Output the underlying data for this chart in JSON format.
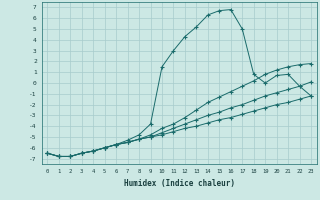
{
  "xlabel": "Humidex (Indice chaleur)",
  "bg_color": "#cce8e4",
  "grid_color": "#a8cccc",
  "line_color": "#1a6b6b",
  "xlim": [
    -0.5,
    23.5
  ],
  "ylim": [
    -7.5,
    7.5
  ],
  "xticks": [
    0,
    1,
    2,
    3,
    4,
    5,
    6,
    7,
    8,
    9,
    10,
    11,
    12,
    13,
    14,
    15,
    16,
    17,
    18,
    19,
    20,
    21,
    22,
    23
  ],
  "yticks": [
    -7,
    -6,
    -5,
    -4,
    -3,
    -2,
    -1,
    0,
    1,
    2,
    3,
    4,
    5,
    6,
    7
  ],
  "curve1_x": [
    0,
    1,
    2,
    3,
    4,
    5,
    6,
    7,
    8,
    9,
    10,
    11,
    12,
    13,
    14,
    15,
    16,
    17,
    18,
    19,
    20,
    21,
    22,
    23
  ],
  "curve1_y": [
    -6.5,
    -6.8,
    -6.8,
    -6.5,
    -6.3,
    -6.0,
    -5.7,
    -5.3,
    -4.8,
    -3.8,
    1.5,
    3.0,
    4.3,
    5.2,
    6.3,
    6.7,
    6.8,
    5.0,
    0.8,
    0.0,
    0.7,
    0.8,
    -0.3,
    -1.2
  ],
  "curve2_x": [
    0,
    1,
    2,
    3,
    4,
    5,
    6,
    7,
    8,
    9,
    10,
    11,
    12,
    13,
    14,
    15,
    16,
    17,
    18,
    19,
    20,
    21,
    22,
    23
  ],
  "curve2_y": [
    -6.5,
    -6.8,
    -6.8,
    -6.5,
    -6.3,
    -6.0,
    -5.7,
    -5.5,
    -5.2,
    -4.8,
    -4.2,
    -3.8,
    -3.2,
    -2.5,
    -1.8,
    -1.3,
    -0.8,
    -0.3,
    0.2,
    0.8,
    1.2,
    1.5,
    1.7,
    1.8
  ],
  "curve3_x": [
    0,
    1,
    2,
    3,
    4,
    5,
    6,
    7,
    8,
    9,
    10,
    11,
    12,
    13,
    14,
    15,
    16,
    17,
    18,
    19,
    20,
    21,
    22,
    23
  ],
  "curve3_y": [
    -6.5,
    -6.8,
    -6.8,
    -6.5,
    -6.3,
    -6.0,
    -5.7,
    -5.5,
    -5.2,
    -5.0,
    -4.6,
    -4.2,
    -3.8,
    -3.4,
    -3.0,
    -2.7,
    -2.3,
    -2.0,
    -1.6,
    -1.2,
    -0.9,
    -0.6,
    -0.3,
    0.1
  ],
  "curve4_x": [
    0,
    1,
    2,
    3,
    4,
    5,
    6,
    7,
    8,
    9,
    10,
    11,
    12,
    13,
    14,
    15,
    16,
    17,
    18,
    19,
    20,
    21,
    22,
    23
  ],
  "curve4_y": [
    -6.5,
    -6.8,
    -6.8,
    -6.5,
    -6.3,
    -6.0,
    -5.7,
    -5.5,
    -5.2,
    -5.0,
    -4.8,
    -4.5,
    -4.2,
    -4.0,
    -3.7,
    -3.4,
    -3.2,
    -2.9,
    -2.6,
    -2.3,
    -2.0,
    -1.8,
    -1.5,
    -1.2
  ]
}
